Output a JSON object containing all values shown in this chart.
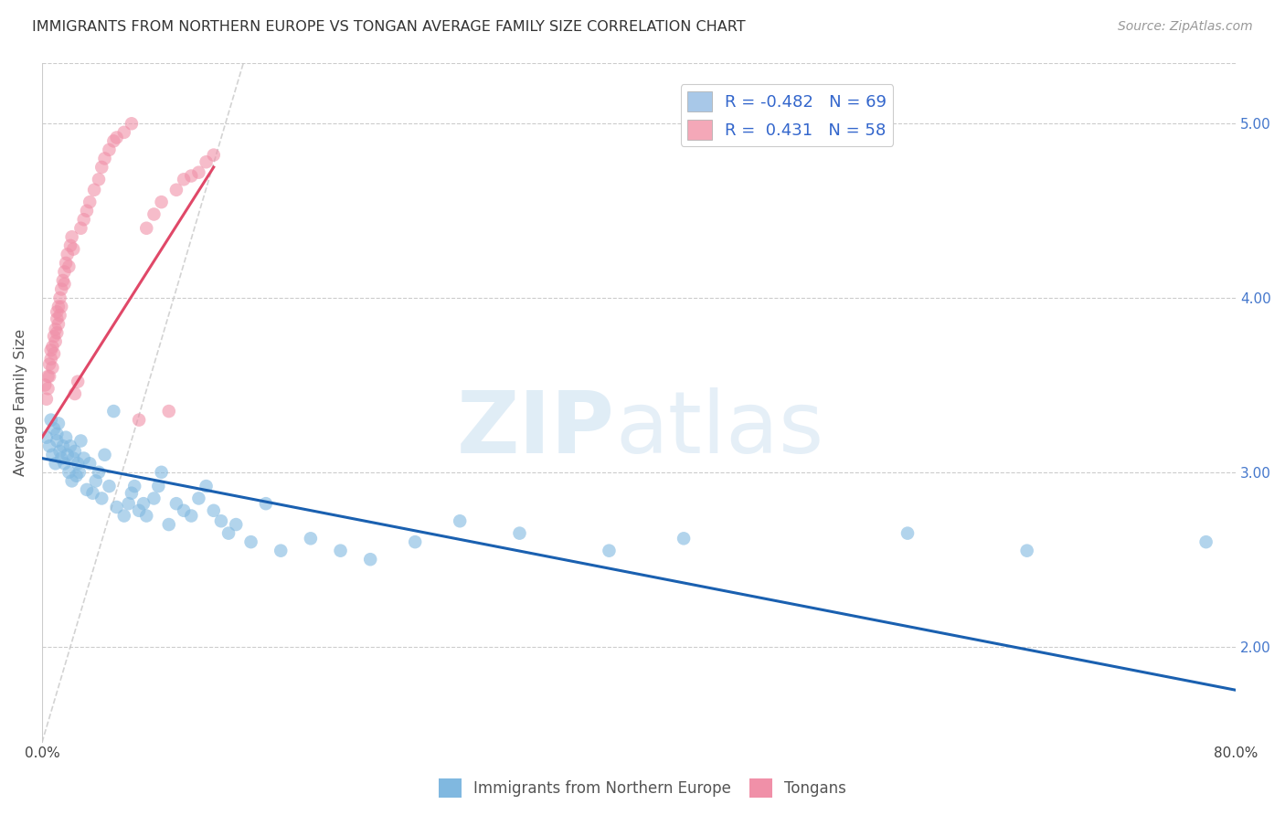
{
  "title": "IMMIGRANTS FROM NORTHERN EUROPE VS TONGAN AVERAGE FAMILY SIZE CORRELATION CHART",
  "source": "Source: ZipAtlas.com",
  "ylabel": "Average Family Size",
  "xlim": [
    0.0,
    0.8
  ],
  "ylim": [
    1.45,
    5.35
  ],
  "yticks": [
    2.0,
    3.0,
    4.0,
    5.0
  ],
  "xticks": [
    0.0,
    0.1,
    0.2,
    0.3,
    0.4,
    0.5,
    0.6,
    0.7,
    0.8
  ],
  "xtick_labels": [
    "0.0%",
    "",
    "",
    "",
    "",
    "",
    "",
    "",
    "80.0%"
  ],
  "ytick_labels_right": [
    "2.00",
    "3.00",
    "4.00",
    "5.00"
  ],
  "legend_entries": [
    {
      "label": "R = -0.482   N = 69",
      "color": "#a8c8e8"
    },
    {
      "label": "R =  0.431   N = 58",
      "color": "#f4a8b8"
    }
  ],
  "blue_color": "#80b8e0",
  "pink_color": "#f090a8",
  "blue_line_color": "#1a60b0",
  "pink_line_color": "#e04868",
  "background_color": "#ffffff",
  "grid_color": "#cccccc",
  "blue_scatter_x": [
    0.003,
    0.005,
    0.006,
    0.007,
    0.008,
    0.009,
    0.01,
    0.01,
    0.011,
    0.012,
    0.013,
    0.014,
    0.015,
    0.016,
    0.017,
    0.018,
    0.019,
    0.02,
    0.021,
    0.022,
    0.023,
    0.024,
    0.025,
    0.026,
    0.028,
    0.03,
    0.032,
    0.034,
    0.036,
    0.038,
    0.04,
    0.042,
    0.045,
    0.048,
    0.05,
    0.055,
    0.058,
    0.06,
    0.062,
    0.065,
    0.068,
    0.07,
    0.075,
    0.078,
    0.08,
    0.085,
    0.09,
    0.095,
    0.1,
    0.105,
    0.11,
    0.115,
    0.12,
    0.125,
    0.13,
    0.14,
    0.15,
    0.16,
    0.18,
    0.2,
    0.22,
    0.25,
    0.28,
    0.32,
    0.38,
    0.43,
    0.58,
    0.66,
    0.78
  ],
  "blue_scatter_y": [
    3.2,
    3.15,
    3.3,
    3.1,
    3.25,
    3.05,
    3.18,
    3.22,
    3.28,
    3.12,
    3.08,
    3.15,
    3.05,
    3.2,
    3.1,
    3.0,
    3.15,
    2.95,
    3.08,
    3.12,
    2.98,
    3.05,
    3.0,
    3.18,
    3.08,
    2.9,
    3.05,
    2.88,
    2.95,
    3.0,
    2.85,
    3.1,
    2.92,
    3.35,
    2.8,
    2.75,
    2.82,
    2.88,
    2.92,
    2.78,
    2.82,
    2.75,
    2.85,
    2.92,
    3.0,
    2.7,
    2.82,
    2.78,
    2.75,
    2.85,
    2.92,
    2.78,
    2.72,
    2.65,
    2.7,
    2.6,
    2.82,
    2.55,
    2.62,
    2.55,
    2.5,
    2.6,
    2.72,
    2.65,
    2.55,
    2.62,
    2.65,
    2.55,
    2.6
  ],
  "pink_scatter_x": [
    0.002,
    0.003,
    0.004,
    0.004,
    0.005,
    0.005,
    0.006,
    0.006,
    0.007,
    0.007,
    0.008,
    0.008,
    0.009,
    0.009,
    0.01,
    0.01,
    0.01,
    0.011,
    0.011,
    0.012,
    0.012,
    0.013,
    0.013,
    0.014,
    0.015,
    0.015,
    0.016,
    0.017,
    0.018,
    0.019,
    0.02,
    0.021,
    0.022,
    0.024,
    0.026,
    0.028,
    0.03,
    0.032,
    0.035,
    0.038,
    0.04,
    0.042,
    0.045,
    0.048,
    0.05,
    0.055,
    0.06,
    0.065,
    0.07,
    0.075,
    0.08,
    0.085,
    0.09,
    0.095,
    0.1,
    0.105,
    0.11,
    0.115
  ],
  "pink_scatter_y": [
    3.5,
    3.42,
    3.55,
    3.48,
    3.62,
    3.55,
    3.7,
    3.65,
    3.72,
    3.6,
    3.78,
    3.68,
    3.82,
    3.75,
    3.88,
    3.8,
    3.92,
    3.85,
    3.95,
    3.9,
    4.0,
    4.05,
    3.95,
    4.1,
    4.15,
    4.08,
    4.2,
    4.25,
    4.18,
    4.3,
    4.35,
    4.28,
    3.45,
    3.52,
    4.4,
    4.45,
    4.5,
    4.55,
    4.62,
    4.68,
    4.75,
    4.8,
    4.85,
    4.9,
    4.92,
    4.95,
    5.0,
    3.3,
    4.4,
    4.48,
    4.55,
    3.35,
    4.62,
    4.68,
    4.7,
    4.72,
    4.78,
    4.82
  ],
  "blue_line_x": [
    0.0,
    0.8
  ],
  "blue_line_y": [
    3.08,
    1.75
  ],
  "pink_line_x": [
    0.0,
    0.115
  ],
  "pink_line_y": [
    3.2,
    4.75
  ],
  "diag_line_x": [
    0.0,
    0.135
  ],
  "diag_line_y": [
    1.45,
    5.35
  ]
}
